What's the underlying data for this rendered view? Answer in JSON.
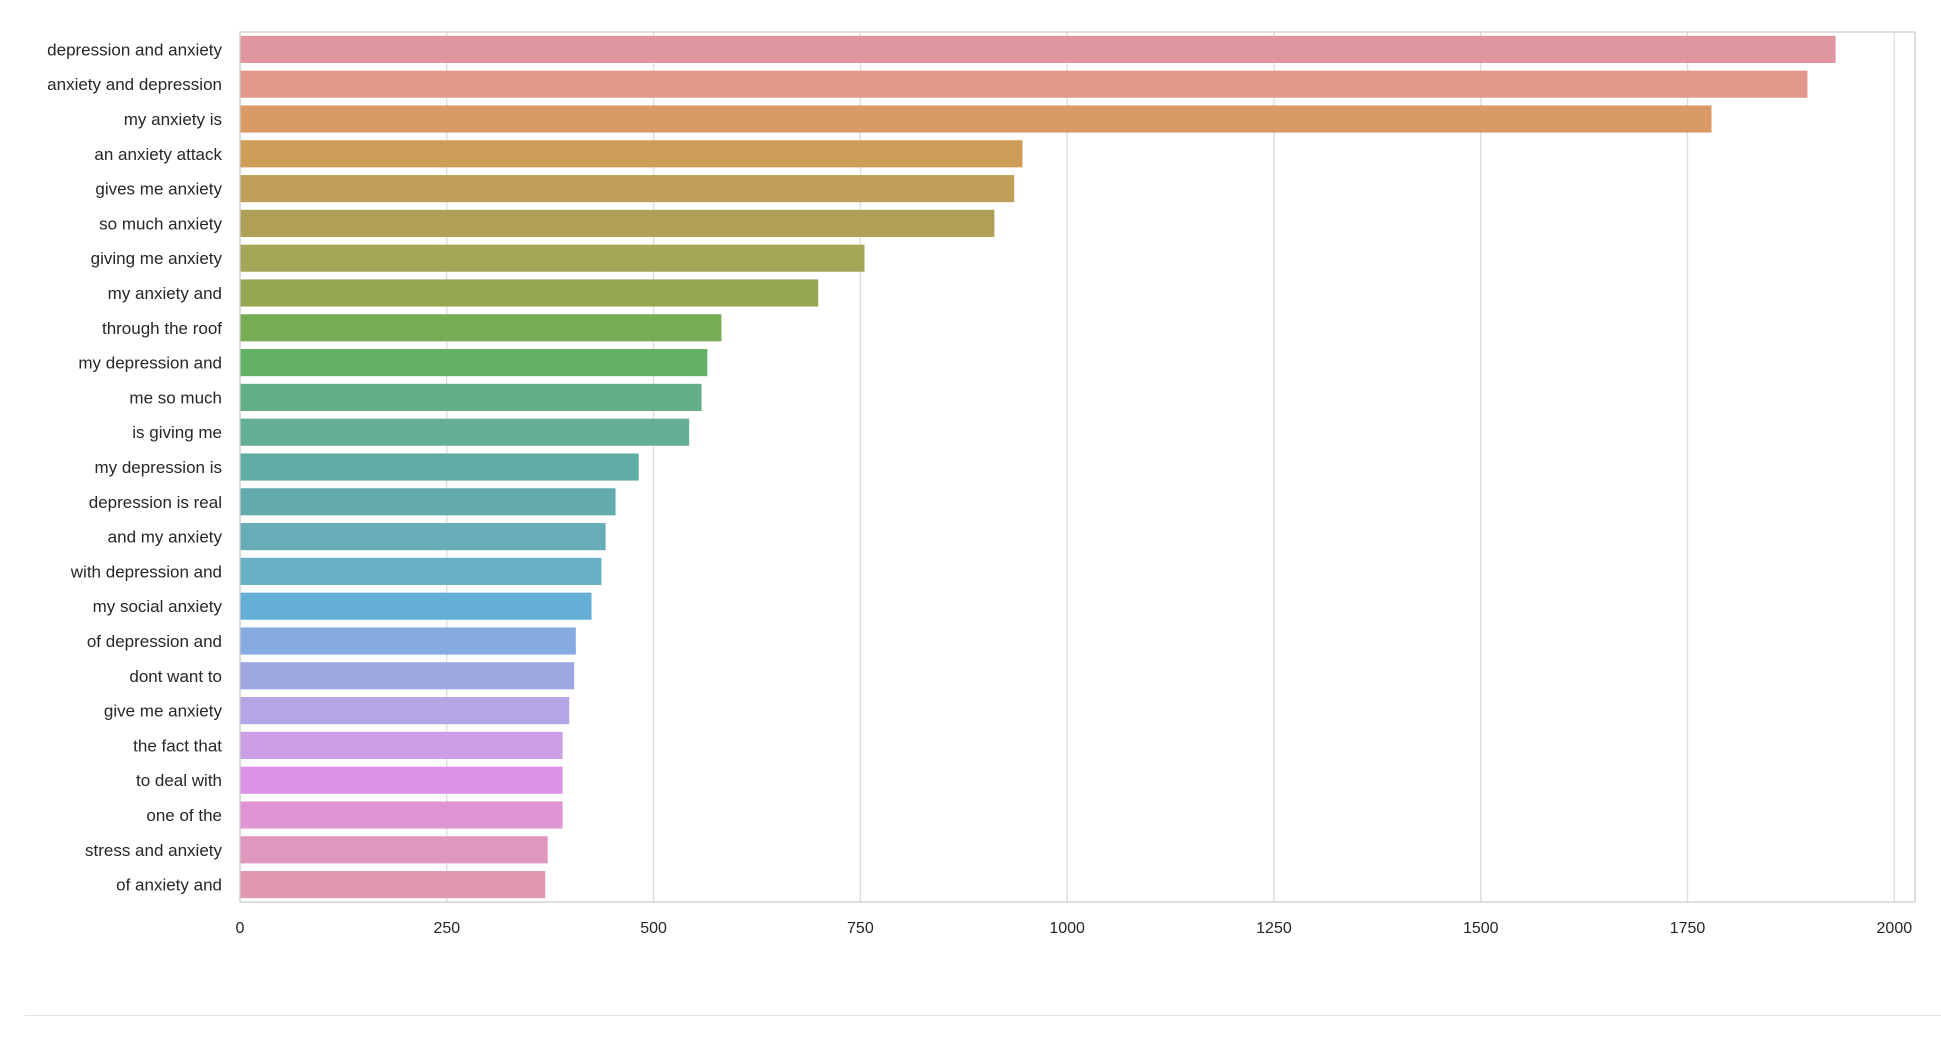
{
  "chart_data": {
    "type": "bar",
    "orientation": "horizontal",
    "title": "",
    "xlabel": "",
    "ylabel": "",
    "xlim": [
      0,
      2025
    ],
    "xticks": [
      0,
      250,
      500,
      750,
      1000,
      1250,
      1500,
      1750,
      2000
    ],
    "xtick_labels": [
      "0",
      "250",
      "500",
      "750",
      "1000",
      "1250",
      "1500",
      "1750",
      "2000"
    ],
    "grid": "vertical",
    "categories": [
      "depression and anxiety",
      "anxiety and depression",
      "my anxiety is",
      "an anxiety attack",
      "gives me anxiety",
      "so much anxiety",
      "giving me anxiety",
      "my anxiety and",
      "through the roof",
      "my depression and",
      "me so much",
      "is giving me",
      "my depression is",
      "depression is real",
      "and my anxiety",
      "with depression and",
      "my social anxiety",
      "of depression and",
      "dont want to",
      "give me anxiety",
      "the fact that",
      "to deal with",
      "one of the",
      "stress and anxiety",
      "of anxiety and"
    ],
    "values": [
      1929,
      1895,
      1779,
      946,
      936,
      912,
      755,
      699,
      582,
      565,
      558,
      543,
      482,
      454,
      442,
      437,
      425,
      406,
      404,
      398,
      390,
      390,
      390,
      372,
      369
    ],
    "colors": [
      "#e0969e",
      "#e19a8a",
      "#d99a66",
      "#d09d58",
      "#c0a058",
      "#b0a057",
      "#a3a656",
      "#94a753",
      "#76ad54",
      "#62b064",
      "#63ae86",
      "#64ad97",
      "#5fada5",
      "#63abad",
      "#66adb8",
      "#68b0c6",
      "#65afd7",
      "#85abe1",
      "#9fa7e2",
      "#b4a5e4",
      "#cc9ee6",
      "#dc92e4",
      "#df94d4",
      "#df97be",
      "#e098b1"
    ]
  }
}
